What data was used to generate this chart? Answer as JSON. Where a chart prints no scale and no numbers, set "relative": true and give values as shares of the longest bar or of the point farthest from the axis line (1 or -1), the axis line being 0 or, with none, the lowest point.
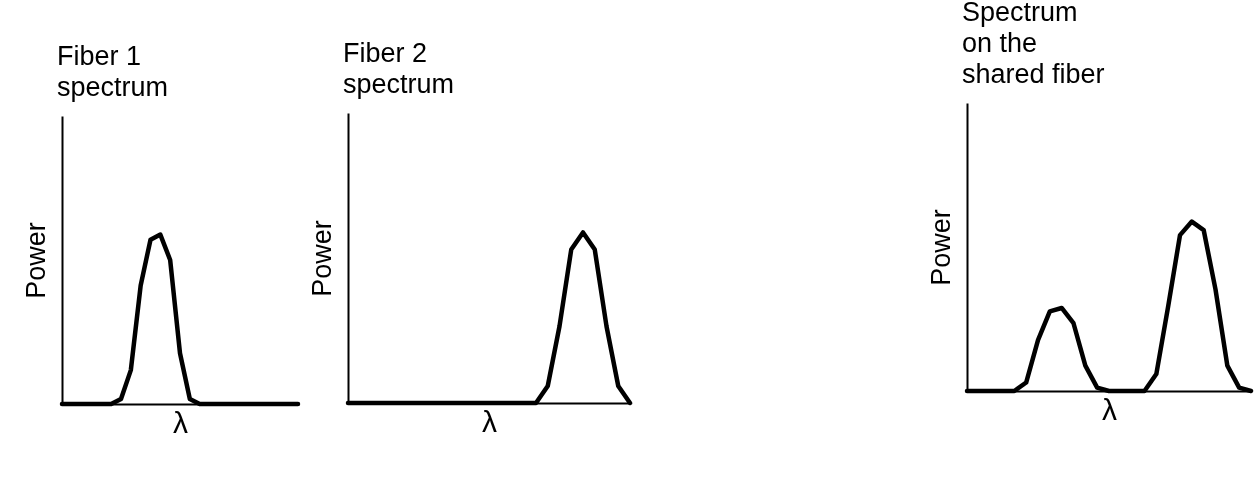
{
  "chart_data": [
    {
      "type": "line",
      "title": "Fiber 1\nspectrum",
      "xlabel": "λ",
      "ylabel": "Power",
      "relative": true,
      "categories": [
        null,
        null,
        null,
        null,
        null,
        null,
        null,
        null,
        null,
        null,
        null,
        null,
        null,
        null,
        null,
        null,
        null,
        null,
        null,
        null,
        null,
        null,
        null,
        null,
        null
      ],
      "series": [
        {
          "color": "#000000",
          "values": [
            0,
            0,
            0,
            0,
            0,
            0,
            0.03,
            0.2,
            0.7,
            0.97,
            1,
            0.85,
            0.3,
            0.03,
            0,
            0,
            0,
            0,
            0,
            0,
            0,
            0,
            0,
            0,
            0
          ]
        }
      ]
    },
    {
      "type": "line",
      "title": "Fiber 2\nspectrum",
      "xlabel": "λ",
      "ylabel": "Power",
      "relative": true,
      "categories": [
        null,
        null,
        null,
        null,
        null,
        null,
        null,
        null,
        null,
        null,
        null,
        null,
        null,
        null,
        null,
        null,
        null,
        null,
        null,
        null,
        null,
        null,
        null,
        null,
        null
      ],
      "series": [
        {
          "color": "#000000",
          "values": [
            0,
            0,
            0,
            0,
            0,
            0,
            0,
            0,
            0,
            0,
            0,
            0,
            0,
            0,
            0,
            0,
            0,
            0.1,
            0.45,
            0.9,
            1,
            0.9,
            0.45,
            0.1,
            0
          ]
        }
      ]
    },
    {
      "type": "line",
      "title": "Spectrum\non the\nshared fiber",
      "xlabel": "λ",
      "ylabel": "Power",
      "relative": true,
      "categories": [
        null,
        null,
        null,
        null,
        null,
        null,
        null,
        null,
        null,
        null,
        null,
        null,
        null,
        null,
        null,
        null,
        null,
        null,
        null,
        null,
        null,
        null,
        null,
        null,
        null
      ],
      "series": [
        {
          "color": "#000000",
          "values": [
            0,
            0,
            0,
            0,
            0,
            0.05,
            0.3,
            0.47,
            0.49,
            0.4,
            0.15,
            0.02,
            0,
            0,
            0,
            0,
            0.1,
            0.5,
            0.92,
            1,
            0.95,
            0.6,
            0.15,
            0.02,
            0
          ]
        }
      ]
    }
  ]
}
